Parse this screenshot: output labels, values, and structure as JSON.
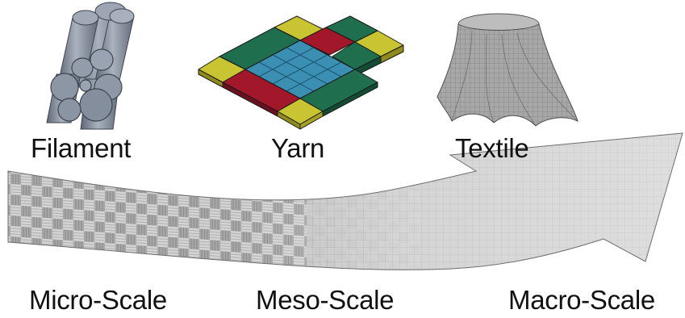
{
  "labels": {
    "filament": "Filament",
    "yarn": "Yarn",
    "textile": "Textile",
    "micro_scale": "Micro-Scale",
    "meso_scale": "Meso-Scale",
    "macro_scale": "Macro-Scale"
  },
  "colors": {
    "filament_gray": "#8a93a3",
    "yarn_yellow": "#c9c431",
    "yarn_red": "#a3172b",
    "yarn_green": "#1f6f4f",
    "yarn_blue": "#3a8fb3",
    "mesh_gray": "#b8b8b8",
    "text": "#111111"
  }
}
